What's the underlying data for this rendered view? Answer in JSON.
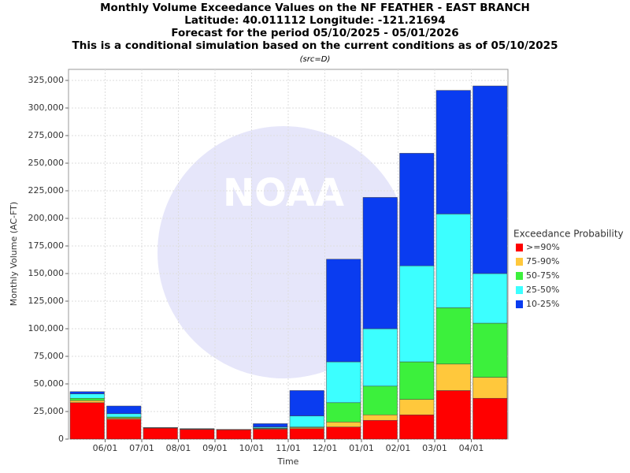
{
  "chart_data": {
    "type": "stacked-bar",
    "title": [
      "Monthly Volume Exceedance Values on the NF FEATHER - EAST BRANCH",
      "Latitude: 40.011112 Longitude: -121.21694",
      "Forecast for the period 05/10/2025 - 05/01/2026",
      "This is a conditional simulation based on the current conditions as of 05/10/2025"
    ],
    "subtitle": "(src=D)",
    "watermark": "NOAA",
    "xlabel": "Time",
    "ylabel": "Monthly Volume (AC-FT)",
    "x_labels": [
      "06/01",
      "07/01",
      "08/01",
      "09/01",
      "10/01",
      "11/01",
      "12/01",
      "01/01",
      "02/01",
      "03/01",
      "04/01"
    ],
    "legend_title": "Exceedance Probability",
    "series": [
      {
        "name": ">=90%",
        "color": "#ff0000",
        "values": [
          33000,
          18000,
          10000,
          8800,
          8400,
          9000,
          9500,
          11000,
          17000,
          22000,
          44000,
          37000
        ]
      },
      {
        "name": "75-90%",
        "color": "#ffc83c",
        "values": [
          2000,
          1000,
          200,
          100,
          100,
          500,
          1000,
          4500,
          5000,
          14000,
          24000,
          19000
        ]
      },
      {
        "name": "50-75%",
        "color": "#3cf03c",
        "values": [
          2000,
          1000,
          100,
          100,
          100,
          500,
          500,
          17500,
          26000,
          34000,
          51000,
          49000
        ]
      },
      {
        "name": "25-50%",
        "color": "#3cffff",
        "values": [
          4000,
          3000,
          100,
          200,
          100,
          1000,
          10000,
          37000,
          52000,
          87000,
          85000,
          45000
        ]
      },
      {
        "name": "10-25%",
        "color": "#0a3cf0",
        "values": [
          2000,
          7000,
          100,
          300,
          100,
          3000,
          23000,
          93000,
          119000,
          102000,
          112000,
          170000
        ]
      }
    ],
    "ylim": [
      0,
      335000
    ],
    "yticks": [
      0,
      {
        "value": 25000,
        "label": "25,000"
      },
      {
        "value": 50000,
        "label": "50,000"
      },
      {
        "value": 75000,
        "label": "75,000"
      },
      {
        "value": 100000,
        "label": "100,000"
      },
      {
        "value": 125000,
        "label": "125,000"
      },
      {
        "value": 150000,
        "label": "150,000"
      },
      {
        "value": 175000,
        "label": "175,000"
      },
      {
        "value": 200000,
        "label": "200,000"
      },
      {
        "value": 225000,
        "label": "225,000"
      },
      {
        "value": 250000,
        "label": "250,000"
      },
      {
        "value": 275000,
        "label": "275,000"
      },
      {
        "value": 300000,
        "label": "300,000"
      },
      {
        "value": 325000,
        "label": "325,000"
      }
    ],
    "grid": true,
    "legend": "right"
  }
}
